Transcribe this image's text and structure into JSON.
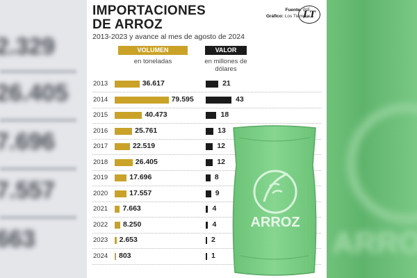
{
  "chart_data": {
    "type": "bar",
    "title": "IMPORTACIONES DE ARROZ",
    "title_lines": [
      "IMPORTACIONES",
      "DE ARROZ"
    ],
    "subtitle": "2013-2023 y avance al mes de agosto de 2024",
    "source_label": "Fuente:",
    "source_value": "INE",
    "graphic_label": "Gráfico:",
    "graphic_value": "Los Tiempos",
    "categories": [
      "2013",
      "2014",
      "2015",
      "2016",
      "2017",
      "2018",
      "2019",
      "2020",
      "2021",
      "2022",
      "2023",
      "2024"
    ],
    "series": [
      {
        "name": "VOLUMEN",
        "unit": "en toneladas",
        "color": "#c9a227",
        "values": [
          36617,
          79595,
          40473,
          25761,
          22519,
          26405,
          17696,
          17557,
          7663,
          8250,
          2653,
          803
        ],
        "labels": [
          "36.617",
          "79.595",
          "40.473",
          "25.761",
          "22.519",
          "26.405",
          "17.696",
          "17.557",
          "7.663",
          "8.250",
          "2.653",
          "803"
        ]
      },
      {
        "name": "VALOR",
        "unit": "en millones de dólares",
        "color": "#1b1b1b",
        "values": [
          21,
          43,
          18,
          13,
          12,
          12,
          8,
          9,
          4,
          4,
          2,
          1
        ],
        "labels": [
          "21",
          "43",
          "18",
          "13",
          "12",
          "12",
          "8",
          "9",
          "4",
          "4",
          "2",
          "1"
        ]
      }
    ]
  },
  "logo": {
    "text": "LT"
  },
  "sack": {
    "label": "ARROZ",
    "color": "#7fd08a"
  },
  "background": {
    "left_ghost_text": [
      "2.329",
      "26.405",
      "7.696",
      "7.557",
      "663"
    ],
    "right_ghost_text": "ARRO"
  }
}
